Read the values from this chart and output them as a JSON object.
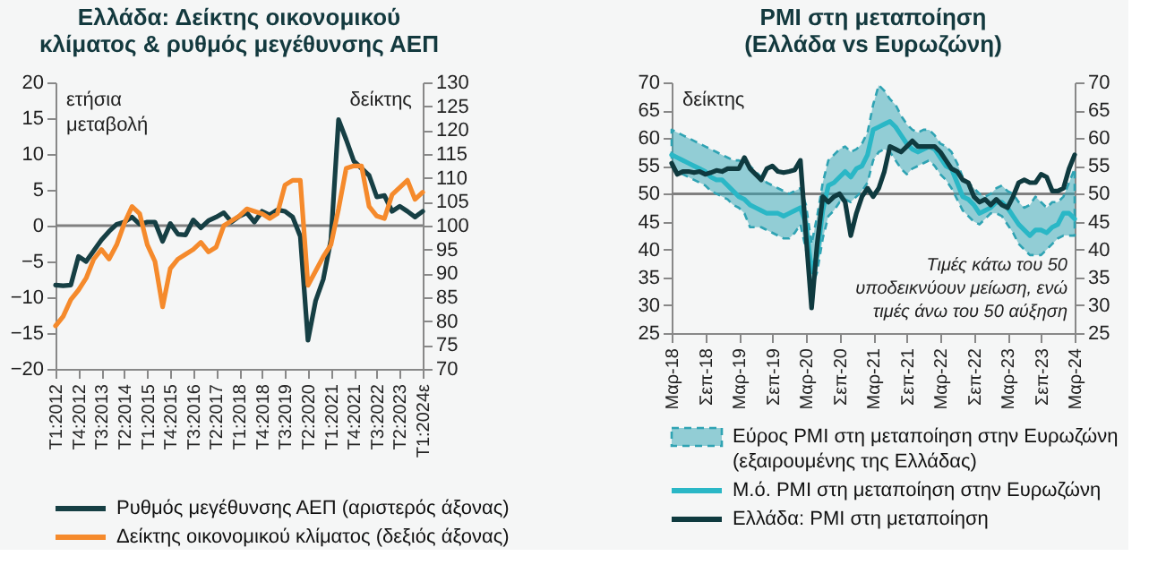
{
  "chart_data": [
    {
      "type": "line",
      "title": "Ελλάδα: Δείκτης οικονομικού κλίματος & ρυθμός μεγέθυνσης ΑΕΠ",
      "ylabel": "ετήσια μεταβολή",
      "y2label": "δείκτης",
      "categories": [
        "T1:2012",
        null,
        null,
        "T4:2012",
        null,
        null,
        "T3:2013",
        null,
        null,
        "T2:2014",
        null,
        null,
        "T1:2015",
        null,
        null,
        "T4:2015",
        null,
        null,
        "T3:2016",
        null,
        null,
        "T2:2017",
        null,
        null,
        "T1:2018",
        null,
        null,
        "T4:2018",
        null,
        null,
        "T3:2019",
        null,
        null,
        "T2:2020",
        null,
        null,
        "T1:2021",
        null,
        null,
        "T4:2021",
        null,
        null,
        "T3:2022",
        null,
        null,
        "T2:2023",
        null,
        null,
        "T1:2024ε"
      ],
      "series": [
        {
          "name": "Ρυθμός μεγέθυνσης ΑΕΠ (αριστερός άξονας)",
          "type": "line",
          "color": "#163f44",
          "values": [
            -8.3,
            -8.4,
            -8.3,
            -4.3,
            -5,
            -3.5,
            -2,
            -0.8,
            0.2,
            0.5,
            1.2,
            0.2,
            0.5,
            0.5,
            -2.2,
            0.3,
            -1.2,
            -1.3,
            0.8,
            -0.3,
            0.7,
            1.2,
            1.8,
            0.5,
            1.3,
            1.8,
            0.5,
            2,
            1.5,
            2.2,
            2,
            1.2,
            -1.5,
            -16,
            -10.5,
            -7.5,
            -2,
            14.8,
            12,
            9,
            8,
            7,
            4,
            4.2,
            2,
            2.7,
            2,
            1.2,
            2
          ]
        },
        {
          "name": "Δείκτης οικονομικού κλίματος (δεξιός άξονας)",
          "type": "line",
          "axis": "y2",
          "color": "#f58a2c",
          "values": [
            79,
            81,
            84.5,
            86.5,
            89,
            93,
            95,
            93,
            96,
            100.5,
            104,
            102.5,
            96,
            92.5,
            83,
            91,
            93,
            94,
            95,
            96.5,
            94.5,
            95.5,
            100,
            101,
            102,
            103.5,
            103,
            102.5,
            101.5,
            102.5,
            108.5,
            109.5,
            109.5,
            87.5,
            90.5,
            93.5,
            96,
            103.5,
            112,
            112.5,
            112.5,
            104,
            102,
            101.5,
            106.5,
            108,
            109.5,
            105.5,
            107
          ]
        }
      ],
      "ylim": [
        -20,
        20
      ],
      "yticks": [
        -20,
        -15,
        -10,
        -5,
        0,
        5,
        10,
        15,
        20
      ],
      "y2lim": [
        70,
        130
      ],
      "y2ticks": [
        70,
        75,
        80,
        85,
        90,
        95,
        100,
        105,
        110,
        115,
        120,
        125,
        130
      ],
      "ref_lines": [
        {
          "axis": "y",
          "value": 0,
          "color": "#808080"
        }
      ],
      "legend": "bottom"
    },
    {
      "type": "line",
      "title": "PMI στη μεταποίηση (Ελλάδα vs Ευρωζώνη)",
      "ylabel": "δείκτης",
      "categories": [
        "Μαρ-18",
        null,
        null,
        null,
        null,
        null,
        "Σεπ-18",
        null,
        null,
        null,
        null,
        null,
        "Μαρ-19",
        null,
        null,
        null,
        null,
        null,
        "Σεπ-19",
        null,
        null,
        null,
        null,
        null,
        "Μαρ-20",
        null,
        null,
        null,
        null,
        null,
        "Σεπ-20",
        null,
        null,
        null,
        null,
        null,
        "Μαρ-21",
        null,
        null,
        null,
        null,
        null,
        "Σεπ-21",
        null,
        null,
        null,
        null,
        null,
        "Μαρ-22",
        null,
        null,
        null,
        null,
        null,
        "Σεπ-22",
        null,
        null,
        null,
        null,
        null,
        "Μαρ-23",
        null,
        null,
        null,
        null,
        null,
        "Σεπ-23",
        null,
        null,
        null,
        null,
        null,
        "Μαρ-24"
      ],
      "series": [
        {
          "name": "Εύρος PMI στη μεταποίηση στην Ευρωζώνη (εξαιρουμένης της Ελλάδας)",
          "type": "area",
          "line_style": "dashed",
          "color": "#2fa3b3",
          "values": [
            null,
            null,
            null,
            null,
            null,
            null,
            null,
            null,
            null,
            null,
            null,
            null,
            null,
            null,
            null,
            null,
            null,
            null,
            null,
            null,
            null,
            null,
            null,
            null,
            null,
            null,
            null,
            null,
            null,
            null,
            null,
            null,
            null,
            null,
            null,
            null,
            null,
            null,
            null,
            null,
            null,
            null,
            null,
            null,
            null,
            null,
            null,
            null,
            null,
            null,
            null,
            null,
            null,
            null,
            null,
            null,
            null,
            null,
            null,
            null,
            null,
            null,
            null,
            null,
            null,
            null,
            null,
            null,
            null,
            null,
            null,
            null,
            null
          ],
          "upper": [
            61.5,
            61,
            60.5,
            60,
            59.5,
            59,
            58.5,
            58,
            57.5,
            57,
            56.5,
            56,
            56,
            55.5,
            55,
            54,
            53,
            52,
            51.5,
            51,
            50.5,
            50,
            50.5,
            51,
            48,
            41,
            46,
            52,
            56,
            57,
            58,
            58.5,
            57.5,
            58,
            59,
            61,
            66,
            69.5,
            68.5,
            67,
            66,
            64,
            62.5,
            61.5,
            61,
            61.5,
            61.5,
            60.5,
            59,
            58.5,
            57.5,
            55.5,
            53,
            52,
            51,
            50,
            49.5,
            50,
            51,
            51.5,
            50.5,
            50,
            48.5,
            47.5,
            48,
            49.5,
            48.5,
            47.5,
            48.5,
            48.5,
            49.5,
            52,
            54.5
          ],
          "lower": [
            55,
            54,
            53.5,
            53,
            52.5,
            52,
            51.5,
            50.5,
            50,
            49.5,
            49,
            48,
            47.5,
            46.5,
            44,
            44,
            44,
            43.5,
            43,
            42.5,
            42,
            42,
            43,
            44.5,
            40,
            33,
            36,
            42,
            46,
            47,
            48.5,
            49,
            48.5,
            49.5,
            50.5,
            52,
            56,
            57.5,
            58,
            57.5,
            56,
            54.5,
            53.5,
            54.5,
            55,
            55.5,
            56,
            55,
            53.5,
            52.5,
            51,
            49,
            47,
            46,
            45,
            44.5,
            45.5,
            46.5,
            46.5,
            46,
            44.5,
            43,
            41,
            40,
            39,
            39,
            39,
            40,
            41,
            42,
            42.5,
            42.5,
            42.5
          ]
        },
        {
          "name": "Μ.ό. PMI στη μεταποίηση στην Ευρωζώνη",
          "type": "line",
          "color": "#2ab7c6",
          "values": [
            57,
            56.5,
            56,
            55.5,
            55,
            54.5,
            54,
            53,
            52.5,
            52.5,
            51.5,
            50.5,
            49.5,
            49,
            48,
            47.5,
            47,
            46.5,
            46.5,
            46.5,
            46,
            46.5,
            47,
            47.5,
            44.5,
            36,
            39,
            47,
            51.5,
            52,
            53,
            54,
            53,
            54.5,
            55,
            57,
            61.5,
            62,
            62.5,
            63,
            62,
            60.5,
            59,
            58,
            57.5,
            58,
            58.5,
            58,
            56.5,
            55,
            54.5,
            52,
            49.5,
            49,
            48,
            46.5,
            47,
            47.5,
            48.5,
            48.5,
            47.5,
            46,
            44.5,
            43.5,
            42.5,
            43.5,
            43.5,
            43,
            44,
            44.5,
            46.5,
            46.5,
            45.5
          ]
        },
        {
          "name": "Ελλάδα: PMI στη μεταποίηση",
          "type": "line",
          "color": "#0f3a3f",
          "values": [
            55.5,
            53.5,
            54,
            54,
            53.8,
            54,
            53.5,
            53.8,
            54.2,
            54,
            54.5,
            54.5,
            54.5,
            56.5,
            54.5,
            53.5,
            52.5,
            54.5,
            55,
            54,
            53.8,
            54,
            54.3,
            56,
            42.5,
            29.5,
            41,
            49.5,
            48.5,
            49.5,
            50,
            48.5,
            42.5,
            46.5,
            49.5,
            51,
            49.5,
            51,
            54,
            58.5,
            58,
            57.5,
            58.5,
            59.5,
            58.5,
            58.5,
            58.5,
            58.5,
            57.5,
            56,
            54.5,
            54,
            52.5,
            52,
            49.5,
            48.5,
            49,
            48,
            49,
            48,
            47.5,
            49.5,
            52,
            52.5,
            52,
            52,
            53.5,
            53,
            50.5,
            50.5,
            51,
            54.5,
            57
          ]
        }
      ],
      "ylim": [
        25,
        70
      ],
      "yticks": [
        25,
        30,
        35,
        40,
        45,
        50,
        55,
        60,
        65,
        70
      ],
      "y2lim": [
        25,
        70
      ],
      "y2ticks": [
        25,
        30,
        35,
        40,
        45,
        50,
        55,
        60,
        65,
        70
      ],
      "ref_lines": [
        {
          "axis": "y",
          "value": 50,
          "color": "#808080"
        }
      ],
      "annotations": [
        "Τιμές κάτω του 50 υποδεικνύουν μείωση, ενώ τιμές άνω του 50 αύξηση"
      ],
      "legend": "bottom"
    }
  ]
}
